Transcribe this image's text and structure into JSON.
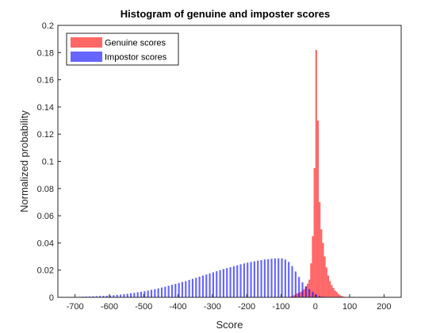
{
  "chart_data": {
    "type": "histogram",
    "title": "Histogram of genuine and imposter scores",
    "xlabel": "Score",
    "ylabel": "Normalized probability",
    "xlim": [
      -750,
      250
    ],
    "ylim": [
      0,
      0.2
    ],
    "xticks": [
      -700,
      -600,
      -500,
      -400,
      -300,
      -200,
      -100,
      0,
      100,
      200
    ],
    "yticks": [
      0,
      0.02,
      0.04,
      0.06,
      0.08,
      0.1,
      0.12,
      0.14,
      0.16,
      0.18,
      0.2
    ],
    "grid": false,
    "legend_placement": "top-left",
    "series": [
      {
        "name": "Genuine scores",
        "color": "#ff0000",
        "opacity": 0.6,
        "bin_width": 5,
        "bins": [
          [
            -75,
            0.0005
          ],
          [
            -70,
            0.001
          ],
          [
            -65,
            0.0015
          ],
          [
            -60,
            0.002
          ],
          [
            -55,
            0.003
          ],
          [
            -50,
            0.003
          ],
          [
            -45,
            0.004
          ],
          [
            -40,
            0.005
          ],
          [
            -35,
            0.006
          ],
          [
            -30,
            0.008
          ],
          [
            -25,
            0.01
          ],
          [
            -20,
            0.013
          ],
          [
            -15,
            0.025
          ],
          [
            -10,
            0.045
          ],
          [
            -5,
            0.095
          ],
          [
            0,
            0.182
          ],
          [
            5,
            0.13
          ],
          [
            10,
            0.07
          ],
          [
            15,
            0.05
          ],
          [
            20,
            0.04
          ],
          [
            25,
            0.03
          ],
          [
            30,
            0.022
          ],
          [
            35,
            0.016
          ],
          [
            40,
            0.012
          ],
          [
            45,
            0.009
          ],
          [
            50,
            0.007
          ],
          [
            55,
            0.005
          ],
          [
            60,
            0.004
          ],
          [
            65,
            0.0025
          ],
          [
            70,
            0.0015
          ],
          [
            75,
            0.001
          ],
          [
            80,
            0.0005
          ]
        ]
      },
      {
        "name": "Impostor scores",
        "color": "#0000ff",
        "opacity": 0.6,
        "bin_width": 5,
        "bins": [
          [
            -700,
            0.0003
          ],
          [
            -690,
            0.0004
          ],
          [
            -680,
            0.0005
          ],
          [
            -670,
            0.0006
          ],
          [
            -660,
            0.0007
          ],
          [
            -650,
            0.0008
          ],
          [
            -640,
            0.0009
          ],
          [
            -630,
            0.001
          ],
          [
            -620,
            0.0011
          ],
          [
            -610,
            0.0012
          ],
          [
            -600,
            0.0014
          ],
          [
            -590,
            0.0016
          ],
          [
            -580,
            0.0018
          ],
          [
            -570,
            0.002
          ],
          [
            -560,
            0.0023
          ],
          [
            -550,
            0.0026
          ],
          [
            -540,
            0.003
          ],
          [
            -530,
            0.0033
          ],
          [
            -520,
            0.0037
          ],
          [
            -510,
            0.0041
          ],
          [
            -500,
            0.0045
          ],
          [
            -490,
            0.005
          ],
          [
            -480,
            0.0055
          ],
          [
            -470,
            0.006
          ],
          [
            -460,
            0.0066
          ],
          [
            -450,
            0.0072
          ],
          [
            -440,
            0.0078
          ],
          [
            -430,
            0.0085
          ],
          [
            -420,
            0.0092
          ],
          [
            -410,
            0.0099
          ],
          [
            -400,
            0.0106
          ],
          [
            -390,
            0.0113
          ],
          [
            -380,
            0.012
          ],
          [
            -370,
            0.0128
          ],
          [
            -360,
            0.0136
          ],
          [
            -350,
            0.0144
          ],
          [
            -340,
            0.0152
          ],
          [
            -330,
            0.016
          ],
          [
            -320,
            0.0168
          ],
          [
            -310,
            0.0176
          ],
          [
            -300,
            0.0184
          ],
          [
            -290,
            0.0192
          ],
          [
            -280,
            0.02
          ],
          [
            -270,
            0.0208
          ],
          [
            -260,
            0.0215
          ],
          [
            -250,
            0.0222
          ],
          [
            -240,
            0.0229
          ],
          [
            -230,
            0.0236
          ],
          [
            -220,
            0.0243
          ],
          [
            -210,
            0.0249
          ],
          [
            -200,
            0.0255
          ],
          [
            -190,
            0.026
          ],
          [
            -180,
            0.0265
          ],
          [
            -170,
            0.027
          ],
          [
            -160,
            0.0274
          ],
          [
            -150,
            0.0278
          ],
          [
            -140,
            0.0281
          ],
          [
            -130,
            0.0284
          ],
          [
            -120,
            0.0286
          ],
          [
            -110,
            0.0287
          ],
          [
            -100,
            0.0286
          ],
          [
            -90,
            0.0278
          ],
          [
            -80,
            0.026
          ],
          [
            -70,
            0.023
          ],
          [
            -60,
            0.019
          ],
          [
            -50,
            0.015
          ],
          [
            -40,
            0.011
          ],
          [
            -30,
            0.008
          ],
          [
            -20,
            0.006
          ],
          [
            -10,
            0.004
          ],
          [
            0,
            0.002
          ],
          [
            10,
            0.001
          ],
          [
            20,
            0.0005
          ]
        ]
      }
    ]
  }
}
